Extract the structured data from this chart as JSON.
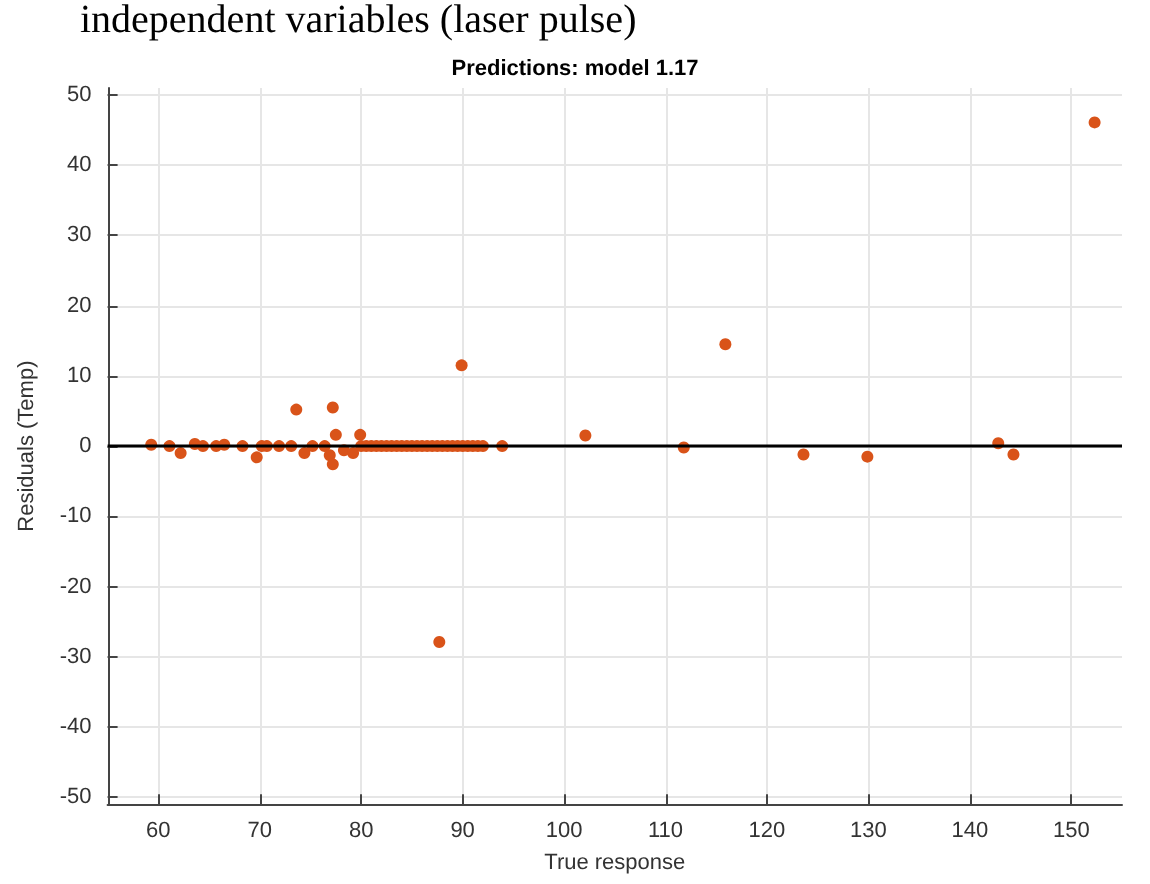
{
  "chart_data": {
    "type": "scatter",
    "title": "Predictions: model 1.17",
    "xlabel": "True response",
    "ylabel": "Residuals (Temp)",
    "annotations": [
      "independent variables (laser pulse)"
    ],
    "x": [
      59.3,
      61.1,
      62.2,
      63.6,
      64.4,
      65.7,
      66.5,
      68.3,
      69.7,
      70.2,
      70.7,
      71.9,
      73.1,
      73.6,
      74.4,
      75.2,
      76.4,
      76.9,
      77.2,
      77.2,
      77.5,
      78.3,
      79.2,
      79.9,
      80,
      80.5,
      81,
      81.5,
      82,
      82.5,
      83,
      83.5,
      84,
      84.5,
      85,
      85.5,
      86,
      86.5,
      87,
      87.5,
      88,
      88.5,
      89,
      89.5,
      90,
      90.5,
      91,
      91.5,
      92,
      89.9,
      93.9,
      102.1,
      111.8,
      115.9,
      123.6,
      129.9,
      142.8,
      144.3,
      87.7,
      152.3
    ],
    "series": [
      {
        "color": "#d95319",
        "values": [
          0.2,
          0,
          -1,
          0.3,
          0,
          0,
          0.2,
          0,
          -1.6,
          0,
          0,
          0,
          0,
          5.2,
          -1,
          0,
          0,
          -1.3,
          5.5,
          -2.6,
          1.6,
          -0.6,
          -1,
          1.6,
          0,
          0,
          0,
          0,
          0,
          0,
          0,
          0,
          0,
          0,
          0,
          0,
          0,
          0,
          0,
          0,
          0,
          0,
          0,
          0,
          0,
          0,
          0,
          0,
          0,
          11.5,
          0,
          1.5,
          -0.2,
          14.5,
          -1.2,
          -1.5,
          0.4,
          -1.2,
          -27.9,
          46.1
        ]
      }
    ],
    "xlim": [
      55,
      155
    ],
    "ylim": [
      -51,
      51
    ],
    "xticks": [
      60,
      70,
      80,
      90,
      100,
      110,
      120,
      130,
      140,
      150
    ],
    "yticks": [
      -50,
      -40,
      -30,
      -20,
      -10,
      0,
      10,
      20,
      30,
      40,
      50
    ],
    "ref_lines": [
      {
        "axis": "y",
        "value": 0,
        "color": "#000000"
      }
    ],
    "grid": true,
    "marker": "circle"
  }
}
